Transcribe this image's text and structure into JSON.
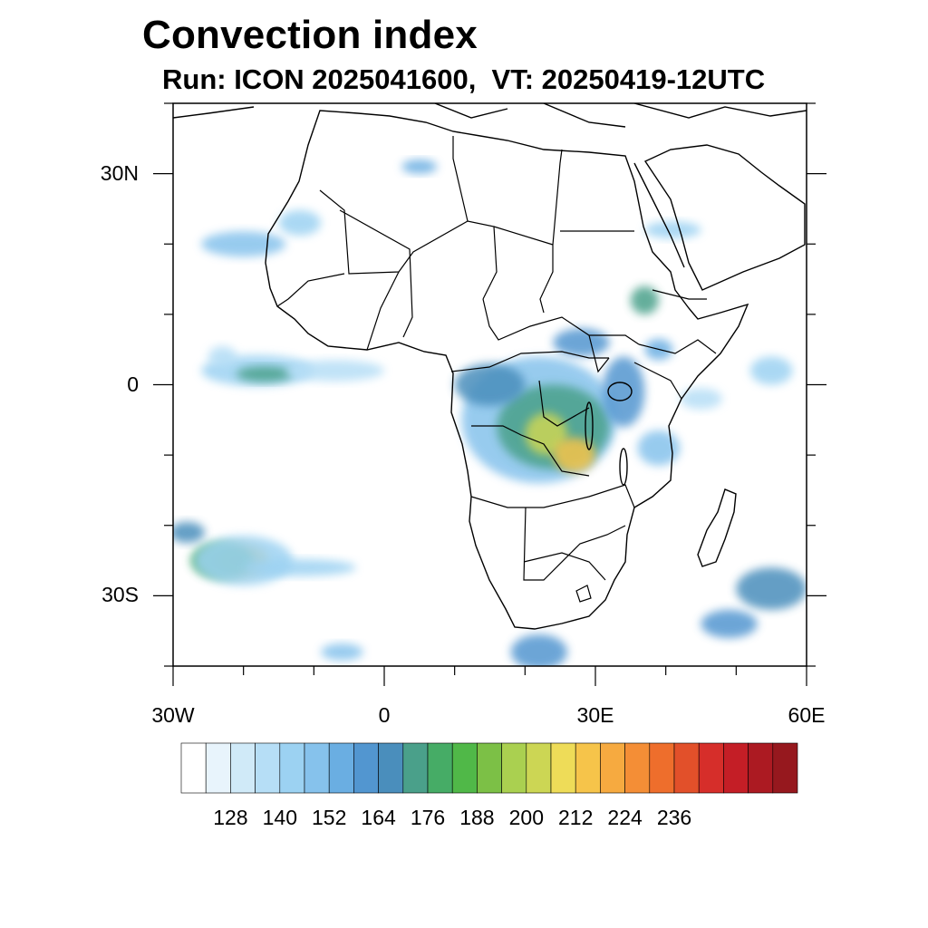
{
  "title": "Convection index",
  "subtitle": "Run: ICON 2025041600,  VT: 20250419-12UTC",
  "map": {
    "lon_range": [
      -30,
      60
    ],
    "lat_range": [
      -40,
      40
    ],
    "lat_ticks": [
      {
        "value": 30,
        "label": "30N"
      },
      {
        "value": 0,
        "label": "0"
      },
      {
        "value": -30,
        "label": "30S"
      }
    ],
    "lon_ticks": [
      {
        "value": -30,
        "label": "30W"
      },
      {
        "value": 0,
        "label": "0"
      },
      {
        "value": 30,
        "label": "30E"
      },
      {
        "value": 60,
        "label": "60E"
      }
    ],
    "minor_tick_step_deg": 10
  },
  "colorbar": {
    "colors": [
      "#ffffff",
      "#e8f4fc",
      "#d0eaf8",
      "#b6def6",
      "#9cd2f2",
      "#86c2ec",
      "#6aaee2",
      "#5296d0",
      "#4a8ebc",
      "#4aa08a",
      "#46ac66",
      "#50b848",
      "#7cc046",
      "#aad050",
      "#ccd654",
      "#eedc58",
      "#f6c44a",
      "#f6aa40",
      "#f48e36",
      "#ee6e2c",
      "#e2502a",
      "#d62e2a",
      "#c41e26",
      "#ac1a22",
      "#96181e"
    ],
    "labels": [
      "128",
      "140",
      "152",
      "164",
      "176",
      "188",
      "200",
      "212",
      "224",
      "236"
    ],
    "label_box_index": [
      2,
      4,
      6,
      8,
      10,
      12,
      14,
      16,
      18,
      20
    ]
  },
  "fields": [
    {
      "lon": -20,
      "lat": -25,
      "rx": 3.6,
      "ry": 2.2,
      "level": 16
    },
    {
      "lon": -23,
      "lat": -25,
      "rx": 4.5,
      "ry": 2.6,
      "level": 10
    },
    {
      "lon": -20,
      "lat": -25,
      "rx": 7,
      "ry": 3.5,
      "level": 4
    },
    {
      "lon": -12,
      "lat": -26,
      "rx": 8,
      "ry": 1.2,
      "level": 4
    },
    {
      "lon": -28,
      "lat": -21,
      "rx": 2.5,
      "ry": 1.5,
      "level": 8
    },
    {
      "lon": -18,
      "lat": 2,
      "rx": 8,
      "ry": 2.2,
      "level": 4
    },
    {
      "lon": -17,
      "lat": 1.5,
      "rx": 4,
      "ry": 1.1,
      "level": 9
    },
    {
      "lon": -7,
      "lat": 2,
      "rx": 7,
      "ry": 1.5,
      "level": 3
    },
    {
      "lon": -20,
      "lat": 20,
      "rx": 6,
      "ry": 1.8,
      "level": 5
    },
    {
      "lon": -12,
      "lat": 23,
      "rx": 3,
      "ry": 1.8,
      "level": 4
    },
    {
      "lon": -23,
      "lat": 4,
      "rx": 2,
      "ry": 1.5,
      "level": 3
    },
    {
      "lon": 5,
      "lat": 31,
      "rx": 2.5,
      "ry": 1,
      "level": 6
    },
    {
      "lon": 22,
      "lat": -5,
      "rx": 11,
      "ry": 9,
      "level": 5
    },
    {
      "lon": 24,
      "lat": -6,
      "rx": 8,
      "ry": 6,
      "level": 9
    },
    {
      "lon": 23,
      "lat": -7,
      "rx": 3,
      "ry": 3,
      "level": 14
    },
    {
      "lon": 27,
      "lat": -10,
      "rx": 3,
      "ry": 2.5,
      "level": 16
    },
    {
      "lon": 15,
      "lat": 0,
      "rx": 5,
      "ry": 3,
      "level": 8
    },
    {
      "lon": 28,
      "lat": 6,
      "rx": 4,
      "ry": 2,
      "level": 7
    },
    {
      "lon": 34,
      "lat": -1,
      "rx": 3,
      "ry": 5,
      "level": 7
    },
    {
      "lon": 37,
      "lat": 12,
      "rx": 2,
      "ry": 2,
      "level": 9
    },
    {
      "lon": 39,
      "lat": 5,
      "rx": 2,
      "ry": 1.5,
      "level": 6
    },
    {
      "lon": 41,
      "lat": 22,
      "rx": 4,
      "ry": 1.2,
      "level": 4
    },
    {
      "lon": 39,
      "lat": -9,
      "rx": 3,
      "ry": 2.5,
      "level": 5
    },
    {
      "lon": 55,
      "lat": -29,
      "rx": 5,
      "ry": 3,
      "level": 8
    },
    {
      "lon": 49,
      "lat": -34,
      "rx": 4,
      "ry": 2,
      "level": 7
    },
    {
      "lon": 22,
      "lat": -38,
      "rx": 4,
      "ry": 2.5,
      "level": 7
    },
    {
      "lon": 55,
      "lat": 2,
      "rx": 3,
      "ry": 2,
      "level": 4
    },
    {
      "lon": 45,
      "lat": -2,
      "rx": 3,
      "ry": 1.5,
      "level": 3
    },
    {
      "lon": -6,
      "lat": -38,
      "rx": 3,
      "ry": 1.2,
      "level": 5
    }
  ]
}
